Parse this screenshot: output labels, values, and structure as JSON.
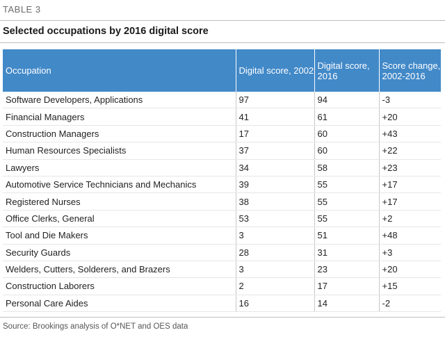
{
  "table_label": "TABLE 3",
  "title": "Selected occupations by 2016 digital score",
  "headers": [
    "Occupation",
    "Digital score, 2002",
    "Digital score, 2016",
    "Score change, 2002-2016"
  ],
  "rows": [
    [
      "Software Developers, Applications",
      "97",
      "94",
      "-3"
    ],
    [
      "Financial Managers",
      "41",
      "61",
      "+20"
    ],
    [
      "Construction Managers",
      "17",
      "60",
      "+43"
    ],
    [
      "Human Resources Specialists",
      "37",
      "60",
      "+22"
    ],
    [
      "Lawyers",
      "34",
      "58",
      "+23"
    ],
    [
      "Automotive Service Technicians and Mechanics",
      "39",
      "55",
      "+17"
    ],
    [
      "Registered Nurses",
      "38",
      "55",
      "+17"
    ],
    [
      "Office Clerks, General",
      "53",
      "55",
      "+2"
    ],
    [
      "Tool and Die Makers",
      "3",
      "51",
      "+48"
    ],
    [
      "Security Guards",
      "28",
      "31",
      "+3"
    ],
    [
      "Welders, Cutters, Solderers, and Brazers",
      "3",
      "23",
      "+20"
    ],
    [
      "Construction Laborers",
      "2",
      "17",
      "+15"
    ],
    [
      "Personal Care Aides",
      "16",
      "14",
      "-2"
    ]
  ],
  "source": "Source: Brookings analysis of O*NET and OES data",
  "colors": {
    "header_background": "#4289c8",
    "header_text": "#ffffff"
  }
}
